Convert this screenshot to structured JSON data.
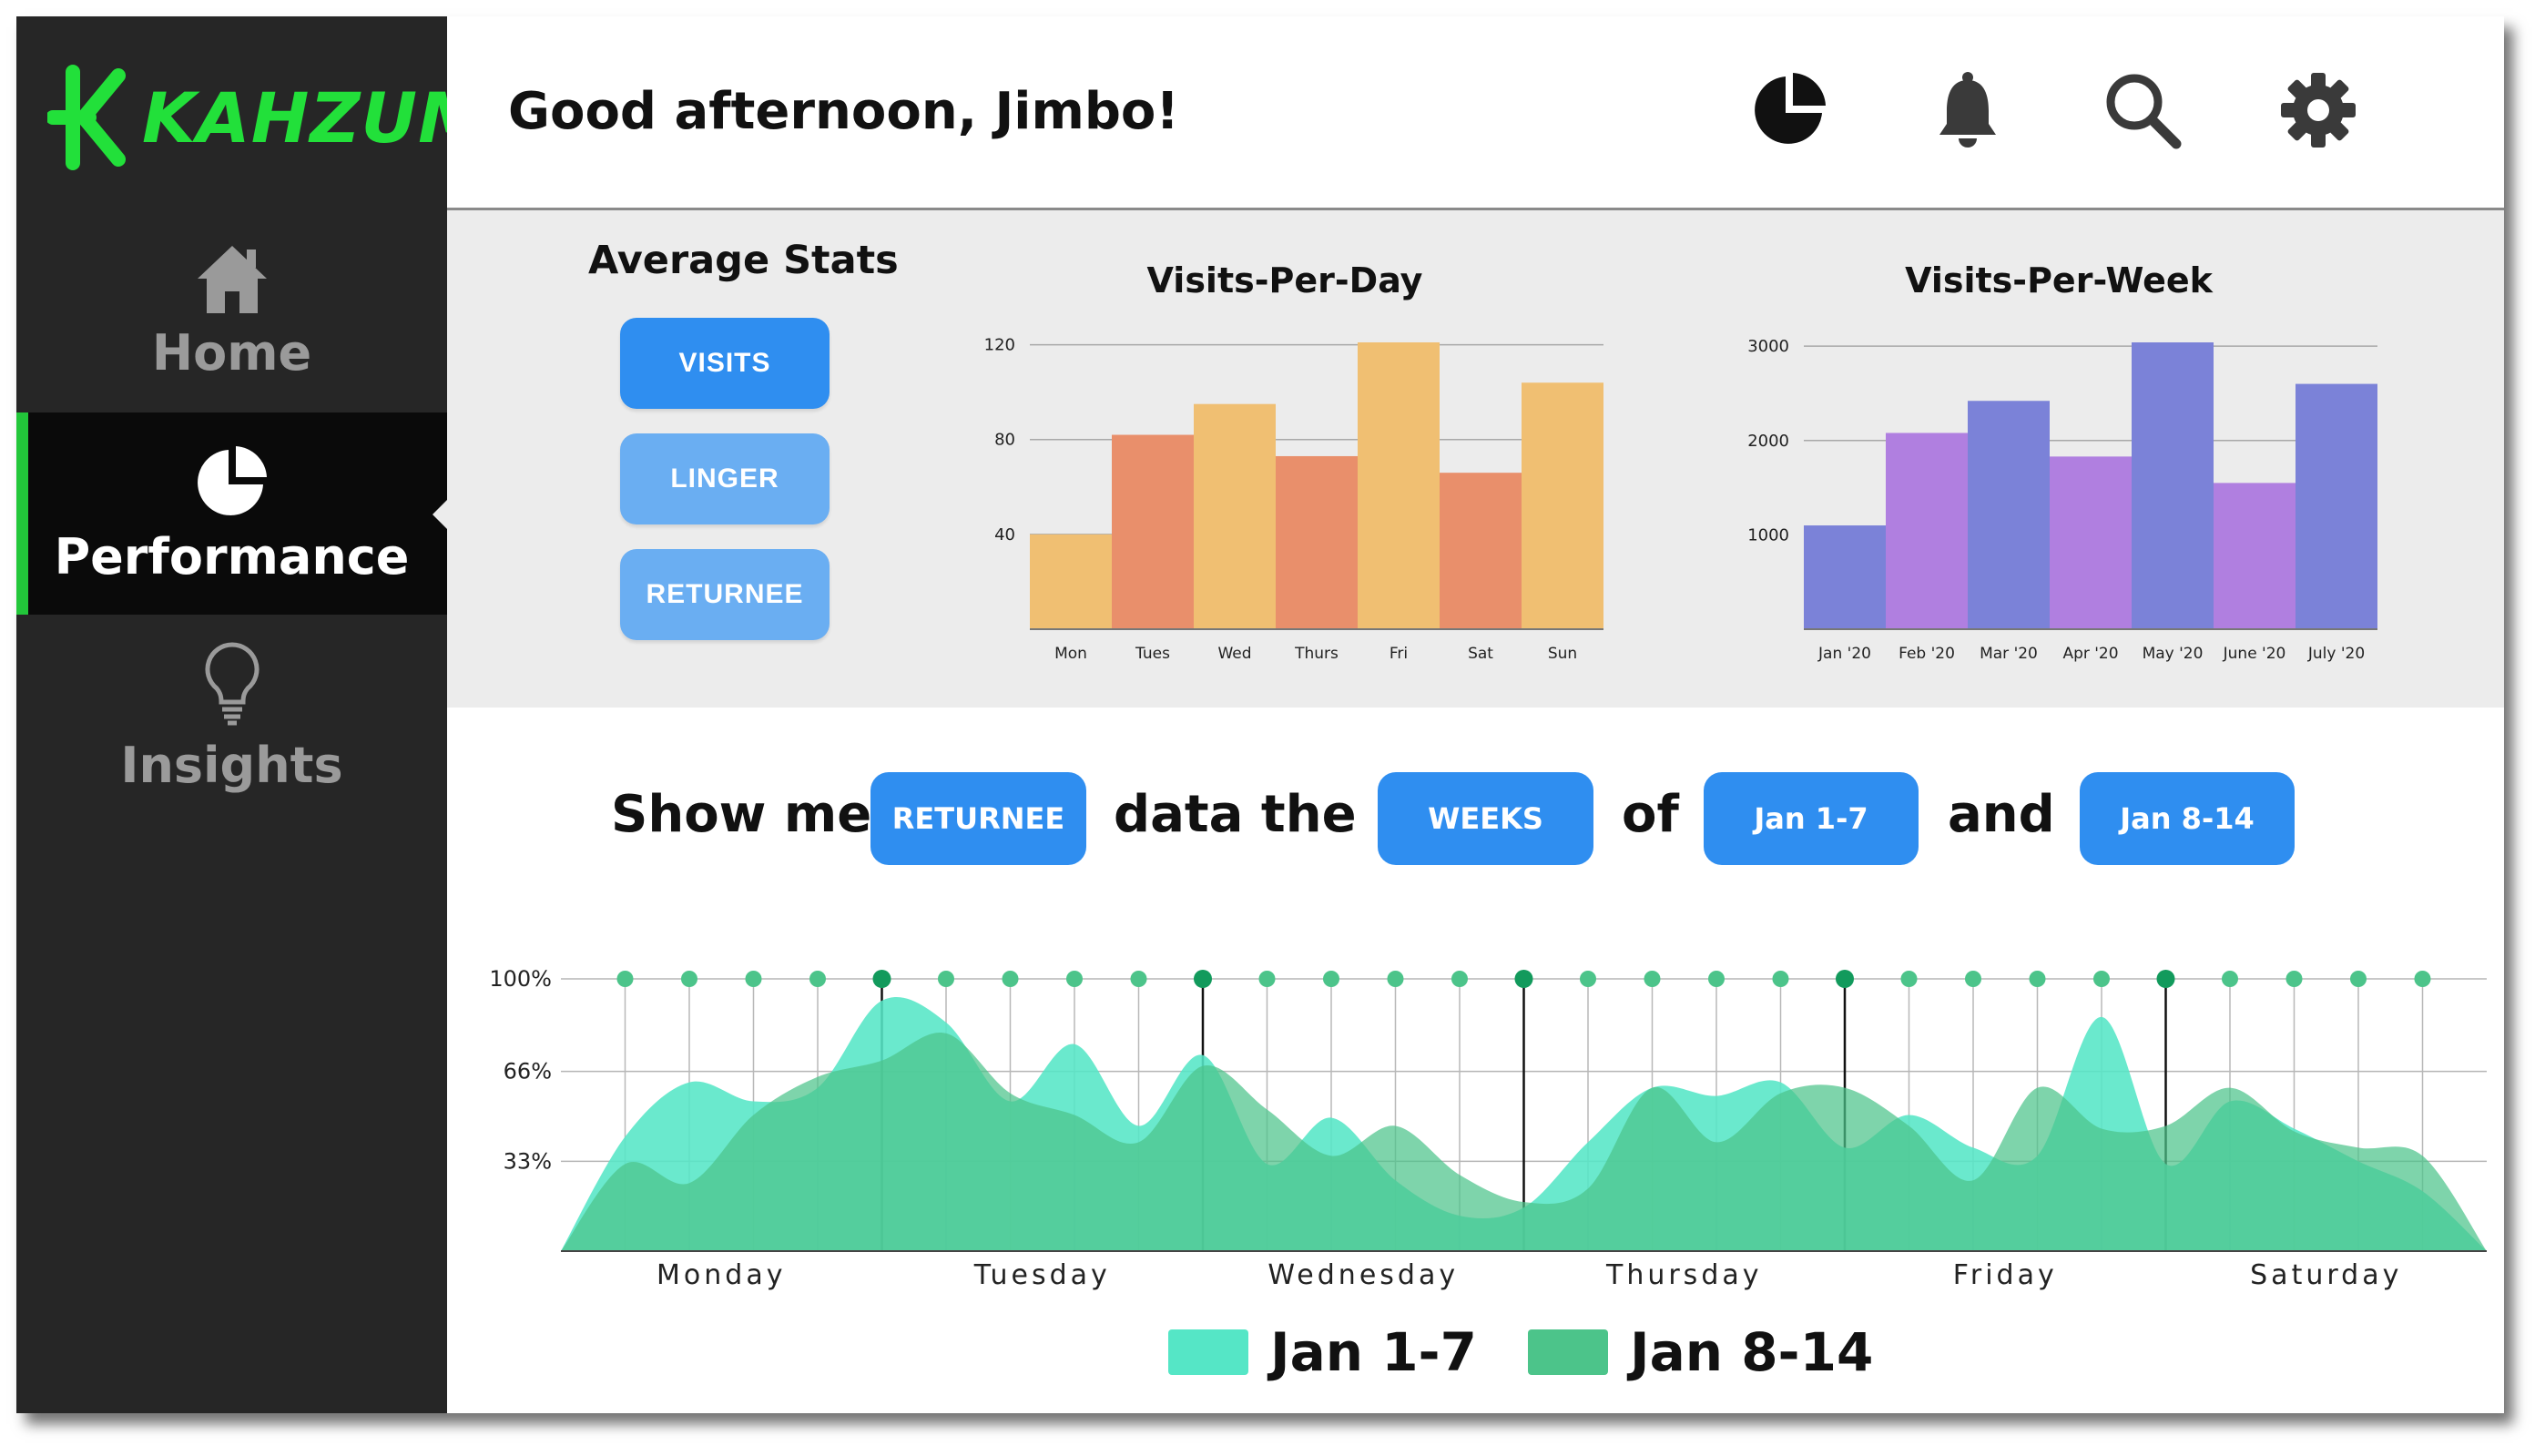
{
  "app": {
    "brand": "KAHZUM",
    "brand_color": "#22e03a"
  },
  "sidebar": {
    "items": [
      {
        "label": "Home",
        "icon": "home-icon",
        "active": false
      },
      {
        "label": "Performance",
        "icon": "pie-chart-icon",
        "active": true
      },
      {
        "label": "Insights",
        "icon": "lightbulb-icon",
        "active": false
      }
    ],
    "accent_color": "#22c73a"
  },
  "header": {
    "greeting": "Good afternoon, Jimbo!",
    "icons": [
      "pie-chart-icon",
      "bell-icon",
      "search-icon",
      "gear-icon"
    ]
  },
  "average_stats": {
    "title": "Average Stats",
    "buttons": [
      {
        "label": "VISITS",
        "color": "#2f8ef0"
      },
      {
        "label": "LINGER",
        "color": "#6aaef2"
      },
      {
        "label": "RETURNEE",
        "color": "#6aaef2"
      }
    ]
  },
  "query": {
    "show_me": "Show me",
    "metric": "RETURNEE",
    "data_the": "data the",
    "period": "WEEKS",
    "of": "of",
    "range_a": "Jan 1-7",
    "and": "and",
    "range_b": "Jan 8-14"
  },
  "legend": [
    {
      "label": "Jan 1-7",
      "color": "#55e6c6"
    },
    {
      "label": "Jan 8-14",
      "color": "#4cc48a"
    }
  ],
  "chart_data": [
    {
      "type": "bar",
      "title": "Visits-Per-Day",
      "categories": [
        "Mon",
        "Tues",
        "Wed",
        "Thurs",
        "Fri",
        "Sat",
        "Sun"
      ],
      "values": [
        40,
        82,
        95,
        73,
        121,
        66,
        104
      ],
      "colors": [
        "#f0bf72",
        "#e98f6b",
        "#f0bf72",
        "#e98f6b",
        "#f0bf72",
        "#e98f6b",
        "#f0bf72"
      ],
      "yticks": [
        40,
        80,
        120
      ],
      "ylim": [
        0,
        121
      ]
    },
    {
      "type": "bar",
      "title": "Visits-Per-Week",
      "categories": [
        "Jan '20",
        "Feb '20",
        "Mar '20",
        "Apr '20",
        "May '20",
        "June '20",
        "July '20"
      ],
      "values": [
        1100,
        2080,
        2420,
        1830,
        3040,
        1550,
        2600
      ],
      "colors": [
        "#7b82d8",
        "#b07fe0",
        "#7b82d8",
        "#b07fe0",
        "#7b82d8",
        "#b07fe0",
        "#7b82d8"
      ],
      "yticks": [
        1000,
        2000,
        3000
      ],
      "ylim": [
        0,
        3040
      ]
    },
    {
      "type": "area",
      "ylim": [
        0,
        100
      ],
      "yticks": [
        {
          "value": 33,
          "label": "33%"
        },
        {
          "value": 66,
          "label": "66%"
        },
        {
          "value": 100,
          "label": "100%"
        }
      ],
      "xticks": [
        "Monday",
        "Tuesday",
        "Wednesday",
        "Thursday",
        "Friday",
        "Saturday"
      ],
      "series": [
        {
          "name": "Jan 1-7",
          "color": "#55e6c6",
          "x": [
            0,
            0.2,
            0.4,
            0.6,
            0.8,
            1.0,
            1.2,
            1.4,
            1.6,
            1.8,
            2.0,
            2.2,
            2.4,
            2.6,
            2.8,
            3.0,
            3.2,
            3.4,
            3.6,
            3.8,
            4.0,
            4.2,
            4.4,
            4.6,
            4.8,
            5.0,
            5.2,
            5.4,
            5.6,
            5.8,
            6.0
          ],
          "y": [
            0,
            42,
            62,
            55,
            60,
            92,
            84,
            55,
            76,
            46,
            72,
            32,
            49,
            26,
            13,
            16,
            40,
            60,
            57,
            62,
            38,
            50,
            38,
            35,
            86,
            32,
            55,
            45,
            33,
            22,
            0
          ]
        },
        {
          "name": "Jan 8-14",
          "color": "#4cc48a",
          "x": [
            0,
            0.2,
            0.4,
            0.6,
            0.8,
            1.0,
            1.2,
            1.4,
            1.6,
            1.8,
            2.0,
            2.2,
            2.4,
            2.6,
            2.8,
            3.0,
            3.2,
            3.4,
            3.6,
            3.8,
            4.0,
            4.2,
            4.4,
            4.6,
            4.8,
            5.0,
            5.2,
            5.4,
            5.6,
            5.8,
            6.0
          ],
          "y": [
            0,
            32,
            25,
            50,
            64,
            70,
            80,
            58,
            50,
            40,
            68,
            52,
            35,
            46,
            28,
            18,
            23,
            60,
            40,
            58,
            60,
            46,
            26,
            60,
            45,
            46,
            60,
            44,
            38,
            35,
            0
          ]
        }
      ],
      "markers": [
        {
          "x": 0.2,
          "y": 100
        },
        {
          "x": 0.4,
          "y": 100
        },
        {
          "x": 0.6,
          "y": 100
        },
        {
          "x": 0.8,
          "y": 100
        },
        {
          "x": 1.0,
          "y": 100,
          "major": true
        },
        {
          "x": 1.2,
          "y": 100
        },
        {
          "x": 1.4,
          "y": 100
        },
        {
          "x": 1.6,
          "y": 100
        },
        {
          "x": 1.8,
          "y": 100
        },
        {
          "x": 2.0,
          "y": 100,
          "major": true
        },
        {
          "x": 2.2,
          "y": 100
        },
        {
          "x": 2.4,
          "y": 100
        },
        {
          "x": 2.6,
          "y": 100
        },
        {
          "x": 2.8,
          "y": 100
        },
        {
          "x": 3.0,
          "y": 100,
          "major": true
        },
        {
          "x": 3.2,
          "y": 100
        },
        {
          "x": 3.4,
          "y": 100
        },
        {
          "x": 3.6,
          "y": 100
        },
        {
          "x": 3.8,
          "y": 100
        },
        {
          "x": 4.0,
          "y": 100,
          "major": true
        },
        {
          "x": 4.2,
          "y": 100
        },
        {
          "x": 4.4,
          "y": 100
        },
        {
          "x": 4.6,
          "y": 100
        },
        {
          "x": 4.8,
          "y": 100
        },
        {
          "x": 5.0,
          "y": 100,
          "major": true
        },
        {
          "x": 5.2,
          "y": 100
        },
        {
          "x": 5.4,
          "y": 100
        },
        {
          "x": 5.6,
          "y": 100
        },
        {
          "x": 5.8,
          "y": 100
        }
      ]
    }
  ]
}
